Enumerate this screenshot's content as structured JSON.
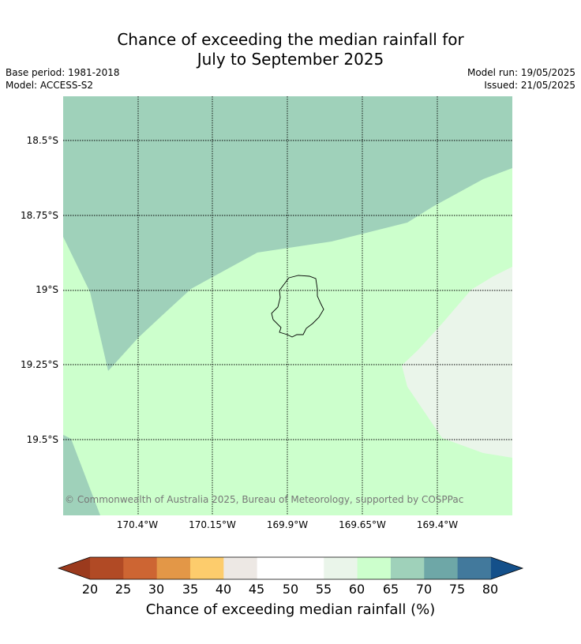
{
  "title_line1": "Chance of exceeding the median rainfall for",
  "title_line2": "July to September 2025",
  "base_period": "Base period: 1981-2018",
  "model": "Model: ACCESS-S2",
  "model_run": "Model run: 19/05/2025",
  "issued": "Issued: 21/05/2025",
  "map": {
    "lat_ticks": [
      "18.5°S",
      "18.75°S",
      "19°S",
      "19.25°S",
      "19.5°S"
    ],
    "lon_ticks": [
      "170.4°W",
      "170.15°W",
      "169.9°W",
      "169.65°W",
      "169.4°W"
    ],
    "copyright": "© Commonwealth of Australia 2025, Bureau of Meteorology, supported by COSPPac",
    "region_colors": {
      "band_60_65": "#ccffcc",
      "band_65_70": "#9fd1ba",
      "band_55_60": "#eaf5ea",
      "coastline": "#000000"
    }
  },
  "colorbar": {
    "label": "Chance of exceeding median rainfall (%)",
    "ticks": [
      "20",
      "25",
      "30",
      "35",
      "40",
      "45",
      "50",
      "55",
      "60",
      "65",
      "70",
      "75",
      "80"
    ],
    "under_color": "#9b3a1d",
    "over_color": "#14508a",
    "colors": [
      "#b14a25",
      "#cd6533",
      "#e39747",
      "#fdcc6c",
      "#ede8e4",
      "#ffffff",
      "#ffffff",
      "#eaf5ea",
      "#ccffcc",
      "#9fd1ba",
      "#6ea7a7",
      "#42799c"
    ]
  }
}
